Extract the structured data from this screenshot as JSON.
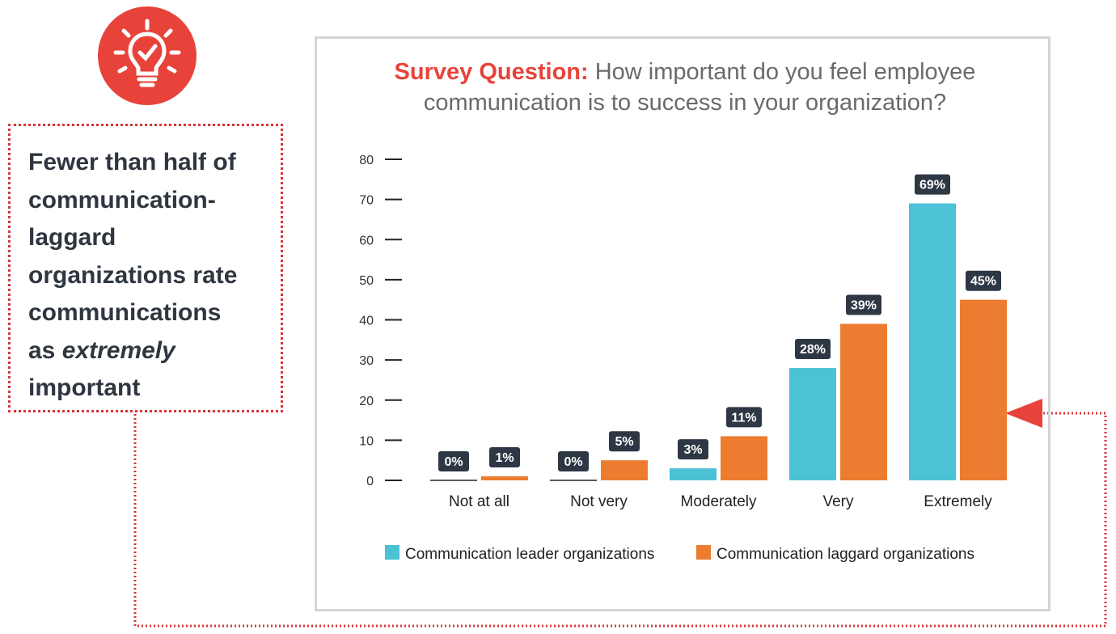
{
  "callout": {
    "line1": "Fewer than half of",
    "line2": "communication-",
    "line3": "laggard",
    "line4": "organizations rate",
    "line5": "communications",
    "line6_prefix": "as ",
    "line6_emphasis": "extremely",
    "line7": "important",
    "icon": "lightbulb-check-icon"
  },
  "colors": {
    "leader": "#4bc2d6",
    "laggard": "#ec7c30",
    "accent": "#e8433a",
    "label_bg": "#2e3744"
  },
  "chart_data": {
    "type": "bar",
    "title_prefix": "Survey Question:",
    "title_line1": " How important do you feel employee",
    "title_line2": "communication is to success in your organization?",
    "categories": [
      "Not at all",
      "Not very",
      "Moderately",
      "Very",
      "Extremely"
    ],
    "series": [
      {
        "name": "Communication leader organizations",
        "values": [
          0,
          0,
          3,
          28,
          69
        ],
        "labels": [
          "0%",
          "0%",
          "3%",
          "28%",
          "69%"
        ]
      },
      {
        "name": "Communication laggard organizations",
        "values": [
          1,
          5,
          11,
          39,
          45
        ],
        "labels": [
          "1%",
          "5%",
          "11%",
          "39%",
          "45%"
        ]
      }
    ],
    "yticks": [
      "0",
      "10",
      "20",
      "30",
      "40",
      "50",
      "60",
      "70",
      "80"
    ],
    "ylim": [
      0,
      80
    ],
    "xlabel": "",
    "ylabel": "",
    "legend": "bottom"
  }
}
